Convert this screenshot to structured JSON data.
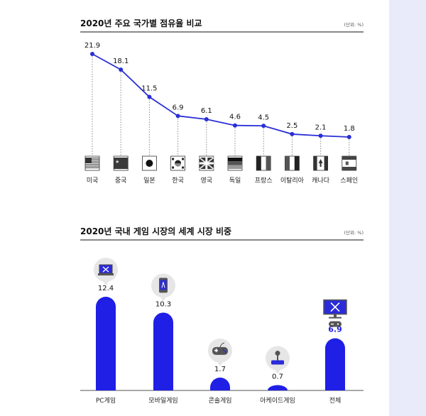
{
  "colors": {
    "accent": "#1f1fe6",
    "line": "#2a2fd6",
    "panel": "#e9ebfb"
  },
  "chart_data": [
    {
      "type": "line",
      "title": "2020년 주요 국가별 점유율 비교",
      "unit": "(단위: %)",
      "categories": [
        "미국",
        "중국",
        "일본",
        "한국",
        "영국",
        "독일",
        "프랑스",
        "이탈리아",
        "캐나다",
        "스페인"
      ],
      "values": [
        21.9,
        18.1,
        11.5,
        6.9,
        6.1,
        4.6,
        4.5,
        2.5,
        2.1,
        1.8
      ],
      "value_labels": [
        "21.9",
        "18.1",
        "11.5",
        "6.9",
        "6.1",
        "4.6",
        "4.5",
        "2.5",
        "2.1",
        "1.8"
      ],
      "flag_icons": [
        "us-flag-icon",
        "china-flag-icon",
        "japan-flag-icon",
        "korea-flag-icon",
        "uk-flag-icon",
        "germany-flag-icon",
        "france-flag-icon",
        "italy-flag-icon",
        "canada-flag-icon",
        "spain-flag-icon"
      ],
      "ylim": [
        0,
        22
      ],
      "grid": false
    },
    {
      "type": "bar",
      "title": "2020년 국내 게임 시장의 세계 시장 비중",
      "unit": "(단위: %)",
      "categories": [
        "PC게임",
        "모바일게임",
        "콘솔게임",
        "아케이드게임",
        "전체"
      ],
      "values": [
        12.4,
        10.3,
        1.7,
        0.7,
        6.9
      ],
      "value_labels": [
        "12.4",
        "10.3",
        "1.7",
        "0.7",
        "6.9"
      ],
      "highlight_index": 4,
      "icons": [
        "laptop-icon",
        "smartphone-icon",
        "gamepad-icon",
        "joystick-icon",
        "monitor-gamepad-icon"
      ],
      "ylim": [
        0,
        13
      ],
      "grid": false
    }
  ]
}
